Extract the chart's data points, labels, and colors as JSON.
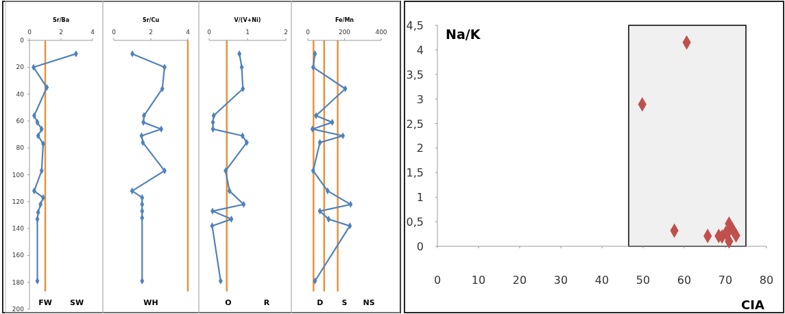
{
  "chart_data": [
    {
      "type": "line",
      "title": "Sr/Ba",
      "xlim": [
        0,
        4
      ],
      "xticks": [
        0,
        2,
        4
      ],
      "ylim": [
        200,
        0
      ],
      "yticks": [
        0,
        20,
        40,
        60,
        80,
        100,
        120,
        140,
        160,
        180,
        200
      ],
      "marker": "diamond",
      "series": [
        {
          "color": "#4f81bd",
          "x": [
            2.95,
            0.26,
            1.1,
            0.3,
            0.5,
            0.77,
            0.55,
            0.87,
            0.77,
            0.3,
            0.87,
            0.7,
            0.55,
            0.5,
            0.5
          ],
          "values": [
            10,
            20,
            35,
            56,
            61,
            66,
            71,
            77,
            97,
            112,
            117,
            122,
            128,
            133,
            179
          ]
        }
      ],
      "ref_lines": [
        {
          "axis": "x",
          "value": 1,
          "color": "#e8923a"
        }
      ],
      "annotations": [
        "FW",
        "SW"
      ]
    },
    {
      "type": "line",
      "title": "Sr/Cu",
      "xlim": [
        0,
        4
      ],
      "xticks": [
        0,
        2,
        4
      ],
      "ylim": [
        200,
        0
      ],
      "tick_labels": "x",
      "marker": "diamond",
      "series": [
        {
          "color": "#4f81bd",
          "x": [
            1,
            2.74,
            2.62,
            1.63,
            1.6,
            2.56,
            1.5,
            1.57,
            2.74,
            0.99,
            1.53,
            1.53,
            1.53,
            1.53,
            1.53
          ],
          "values": [
            10,
            20,
            36,
            56,
            61,
            66,
            71,
            76,
            97,
            112,
            117,
            122,
            127,
            132,
            179
          ]
        }
      ],
      "ref_lines": [
        {
          "axis": "x",
          "value": 4,
          "color": "#e8923a"
        }
      ],
      "annotations": [
        "WH"
      ]
    },
    {
      "type": "line",
      "title": "V/(V+Ni)",
      "xlim": [
        0,
        2
      ],
      "xticks": [
        0,
        1,
        2
      ],
      "ylim": [
        200,
        0
      ],
      "tick_labels": "x",
      "marker": "diamond",
      "series": [
        {
          "color": "#4f81bd",
          "x": [
            0.79,
            0.85,
            0.88,
            0.12,
            0.1,
            0.1,
            0.87,
            0.98,
            0.43,
            0.53,
            0.9,
            0.09,
            0.58,
            0.08,
            0.3
          ],
          "values": [
            10,
            20,
            36,
            56,
            61,
            66,
            71,
            76,
            97,
            112,
            122,
            127,
            133,
            138,
            179
          ]
        }
      ],
      "ref_lines": [
        {
          "axis": "x",
          "value": 0.46,
          "color": "#e8923a"
        }
      ],
      "annotations": [
        "O",
        "R"
      ]
    },
    {
      "type": "line",
      "title": "Fe/Mn",
      "xlim": [
        0,
        400
      ],
      "xticks": [
        0,
        200,
        400
      ],
      "ylim": [
        200,
        0
      ],
      "tick_labels": "x",
      "marker": "diamond",
      "series": [
        {
          "color": "#4f81bd",
          "x": [
            39,
            29,
            204,
            45,
            133,
            25,
            191,
            66,
            29,
            108,
            233,
            66,
            113,
            229,
            39
          ],
          "values": [
            10,
            20,
            36,
            56,
            61,
            66,
            71,
            76,
            97,
            112,
            122,
            127,
            133,
            138,
            179
          ]
        }
      ],
      "ref_lines": [
        {
          "axis": "x",
          "value": 31,
          "color": "#e8923a"
        },
        {
          "axis": "x",
          "value": 89,
          "color": "#e8923a"
        },
        {
          "axis": "x",
          "value": 163,
          "color": "#e8923a"
        }
      ],
      "annotations": [
        "D",
        "S",
        "NS"
      ]
    },
    {
      "type": "scatter",
      "xlabel": "CIA",
      "ylabel": "Na/K",
      "xlim": [
        0,
        80
      ],
      "xticks": [
        0,
        10,
        20,
        30,
        40,
        50,
        60,
        70,
        80
      ],
      "ylim": [
        0,
        4.5
      ],
      "yticks": [
        0,
        {
          "value": 0.5,
          "label": "0,5"
        },
        1,
        {
          "value": 1.5,
          "label": "1,5"
        },
        2,
        {
          "value": 2.5,
          "label": "2,5"
        },
        3,
        {
          "value": 3.5,
          "label": "3,5"
        },
        4,
        {
          "value": 4.5,
          "label": "4,5"
        }
      ],
      "marker": "diamond",
      "series": [
        {
          "color": "#c0504d",
          "x": [
            49.8,
            60.6,
            57.6,
            65.7,
            68.4,
            69.2,
            70.1,
            70.9,
            70.9,
            70.9,
            72,
            72.6,
            71.7
          ],
          "values": [
            2.89,
            4.15,
            0.32,
            0.21,
            0.21,
            0.2,
            0.27,
            0.46,
            0.32,
            0.1,
            null,
            0.22,
            0.35
          ]
        }
      ],
      "bands": [
        {
          "axis": "x",
          "from": 46.5,
          "to": 75,
          "color": "#000000"
        }
      ]
    }
  ]
}
